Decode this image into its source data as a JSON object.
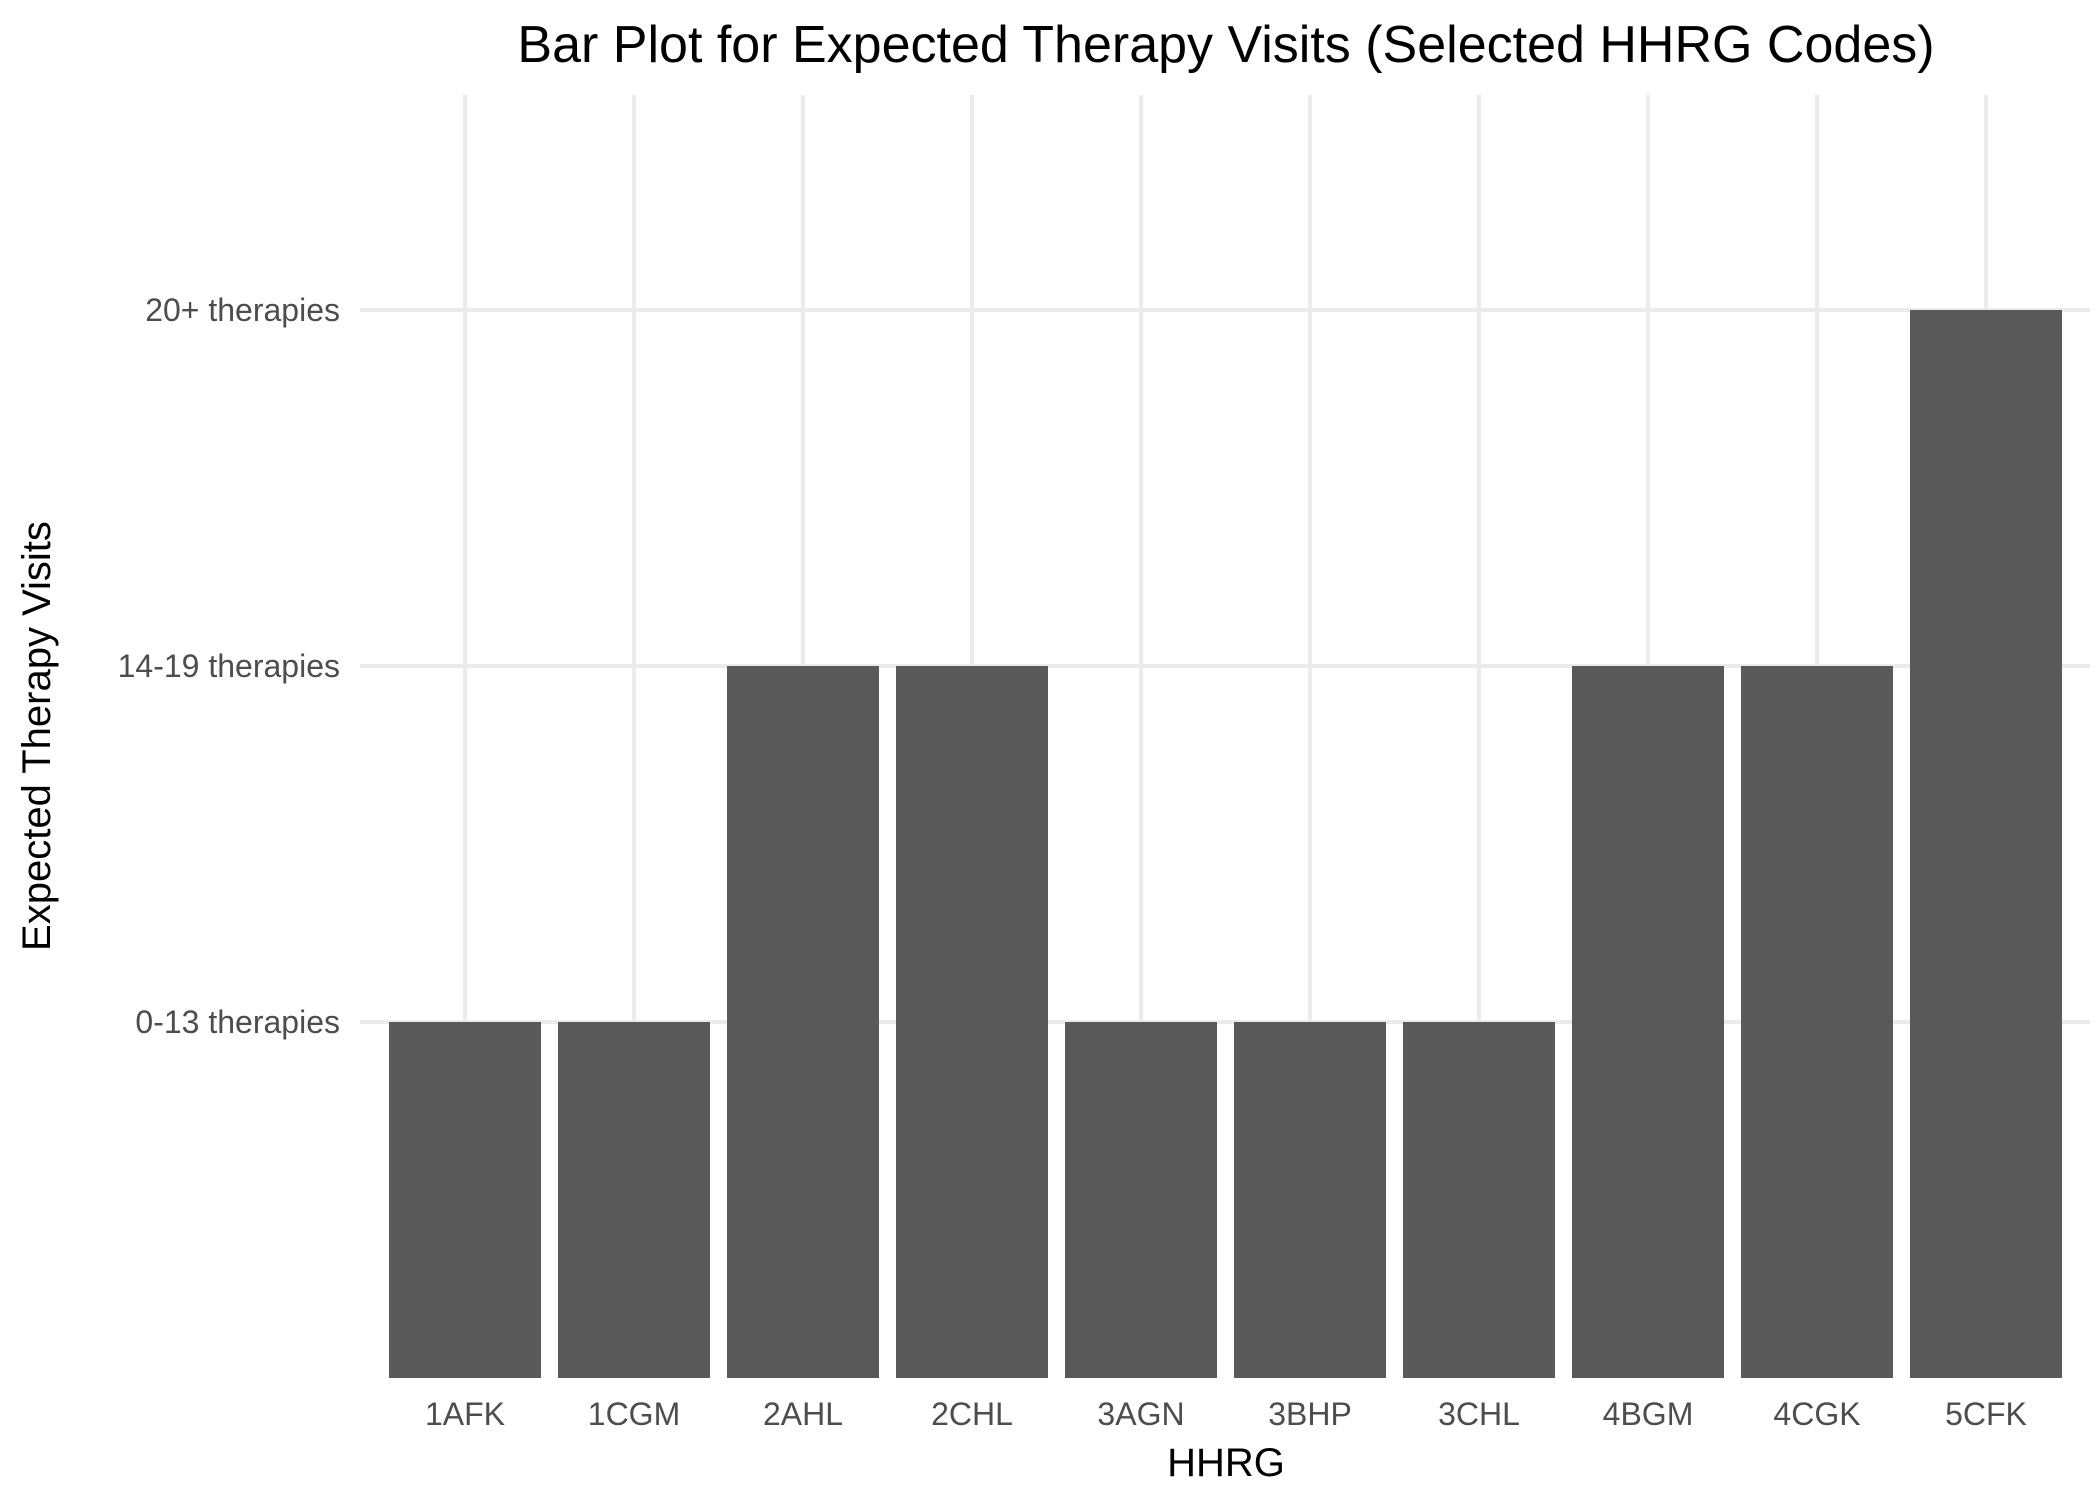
{
  "chart_data": {
    "type": "bar",
    "title": "Bar Plot for Expected Therapy Visits (Selected HHRG Codes)",
    "xlabel": "HHRG",
    "ylabel": "Expected Therapy Visits",
    "categories": [
      "1AFK",
      "1CGM",
      "2AHL",
      "2CHL",
      "3AGN",
      "3BHP",
      "3CHL",
      "4BGM",
      "4CGK",
      "5CFK"
    ],
    "y_levels": [
      "0-13 therapies",
      "14-19 therapies",
      "20+ therapies"
    ],
    "values": [
      "0-13 therapies",
      "0-13 therapies",
      "14-19 therapies",
      "14-19 therapies",
      "0-13 therapies",
      "0-13 therapies",
      "0-13 therapies",
      "14-19 therapies",
      "14-19 therapies",
      "20+ therapies"
    ],
    "grid": true,
    "legend": "none",
    "colors": {
      "bar": "#595959",
      "grid": "#ebebeb",
      "tick_text": "#4d4d4d",
      "title_text": "#000000"
    }
  }
}
